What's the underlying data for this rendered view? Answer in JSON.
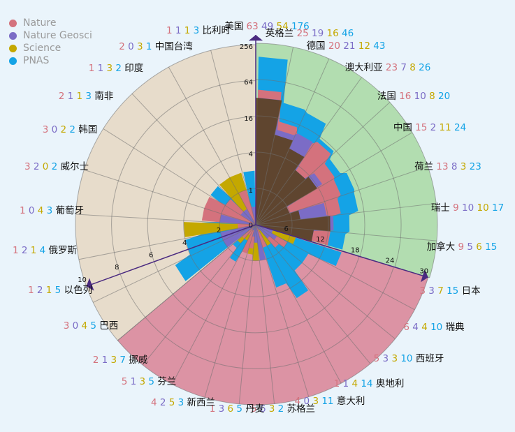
{
  "colors": {
    "nature": "#d4727d",
    "geosci": "#7b6cc6",
    "science": "#c4a800",
    "pnas": "#14a3e6",
    "dark": "#5a3e14",
    "fill_green": "#b2ddb0",
    "fill_tan": "#e7dccb",
    "fill_pink": "#dc93a4",
    "axis_purple": "#4a2a80"
  },
  "legend": [
    {
      "label": "Nature",
      "color": "#d4727d"
    },
    {
      "label": "Nature Geosci",
      "color": "#7b6cc6"
    },
    {
      "label": "Science",
      "color": "#c4a800"
    },
    {
      "label": "PNAS",
      "color": "#14a3e6"
    }
  ],
  "chart_data": {
    "type": "polar-bar",
    "series": [
      {
        "name": "Nature"
      },
      {
        "name": "Nature Geosci"
      },
      {
        "name": "Science"
      },
      {
        "name": "PNAS"
      }
    ],
    "groups": [
      {
        "scale": "log2",
        "scale_ticks": [
          "0",
          "1",
          "4",
          "16",
          "64",
          "256"
        ],
        "categories": [
          {
            "name": "美国",
            "values": [
              63,
              49,
              54,
              176
            ]
          },
          {
            "name": "英格兰",
            "values": [
              25,
              19,
              16,
              46
            ]
          },
          {
            "name": "德国",
            "values": [
              20,
              21,
              12,
              43
            ]
          },
          {
            "name": "澳大利亚",
            "values": [
              23,
              7,
              8,
              26
            ]
          },
          {
            "name": "法国",
            "values": [
              16,
              10,
              8,
              20
            ]
          },
          {
            "name": "中国",
            "values": [
              15,
              2,
              11,
              24
            ]
          },
          {
            "name": "荷兰",
            "values": [
              13,
              8,
              3,
              23
            ]
          },
          {
            "name": "瑞士",
            "values": [
              9,
              10,
              10,
              17
            ]
          },
          {
            "name": "加拿大",
            "values": [
              9,
              5,
              6,
              15
            ]
          }
        ]
      },
      {
        "scale": "linear",
        "scale_ticks": [
          "6",
          "12",
          "18",
          "24",
          "30"
        ],
        "categories": [
          {
            "name": "日本",
            "values": [
              3,
              3,
              7,
              15
            ]
          },
          {
            "name": "瑞典",
            "values": [
              6,
              4,
              4,
              10
            ]
          },
          {
            "name": "西班牙",
            "values": [
              5,
              3,
              3,
              10
            ]
          },
          {
            "name": "奥地利",
            "values": [
              1,
              1,
              4,
              14
            ]
          },
          {
            "name": "意大利",
            "values": [
              4,
              0,
              3,
              11
            ]
          },
          {
            "name": "苏格兰",
            "values": [
              5,
              6,
              3,
              2
            ]
          },
          {
            "name": "丹麦",
            "values": [
              1,
              3,
              6,
              5
            ]
          },
          {
            "name": "新西兰",
            "values": [
              4,
              2,
              5,
              3
            ]
          },
          {
            "name": "芬兰",
            "values": [
              5,
              1,
              3,
              5
            ]
          },
          {
            "name": "挪威",
            "values": [
              2,
              1,
              3,
              7
            ]
          },
          {
            "name": "巴西",
            "values": [
              3,
              0,
              4,
              5
            ]
          }
        ]
      },
      {
        "scale": "linear",
        "scale_ticks": [
          "2",
          "4",
          "6",
          "8",
          "10"
        ],
        "categories": [
          {
            "name": "以色列",
            "values": [
              1,
              2,
              1,
              5
            ]
          },
          {
            "name": "俄罗斯",
            "values": [
              1,
              2,
              1,
              4
            ]
          },
          {
            "name": "葡萄牙",
            "values": [
              1,
              0,
              4,
              3
            ]
          },
          {
            "name": "威尔士",
            "values": [
              3,
              2,
              0,
              2
            ]
          },
          {
            "name": "韩国",
            "values": [
              3,
              0,
              2,
              2
            ]
          },
          {
            "name": "南非",
            "values": [
              2,
              1,
              1,
              3
            ]
          },
          {
            "name": "印度",
            "values": [
              1,
              1,
              3,
              2
            ]
          },
          {
            "name": "中国台湾",
            "values": [
              2,
              0,
              3,
              1
            ]
          },
          {
            "name": "比利时",
            "values": [
              1,
              1,
              1,
              3
            ]
          }
        ]
      }
    ]
  }
}
